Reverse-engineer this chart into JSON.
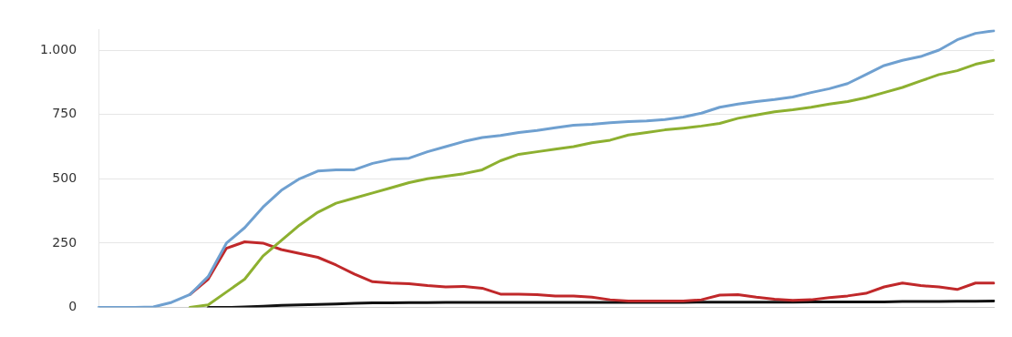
{
  "chart_data": {
    "type": "line",
    "categories": [
      null,
      null,
      null,
      null,
      null,
      null,
      null,
      null,
      null,
      null,
      null,
      null,
      null,
      null,
      null,
      null,
      null,
      null,
      null,
      null,
      null,
      null,
      null,
      null,
      null,
      null,
      null,
      null,
      null,
      null,
      null,
      null,
      null,
      null,
      null,
      null,
      null,
      null,
      null,
      null,
      null,
      null,
      null,
      null,
      null,
      null,
      null,
      null,
      null,
      null
    ],
    "series": [
      {
        "color": "#6fa0d0",
        "values": [
          0,
          0,
          0,
          2,
          20,
          50,
          120,
          250,
          310,
          390,
          455,
          500,
          530,
          535,
          535,
          560,
          575,
          580,
          605,
          625,
          645,
          660,
          668,
          680,
          688,
          698,
          708,
          712,
          718,
          722,
          725,
          730,
          740,
          755,
          778,
          790,
          800,
          808,
          818,
          835,
          850,
          870,
          905,
          940,
          960,
          975,
          1000,
          1040,
          1065,
          1075
        ]
      },
      {
        "color": "#8db030",
        "values": [
          null,
          null,
          null,
          null,
          null,
          0,
          10,
          60,
          110,
          200,
          260,
          320,
          370,
          405,
          425,
          445,
          465,
          485,
          500,
          510,
          520,
          535,
          570,
          595,
          605,
          615,
          625,
          640,
          650,
          670,
          680,
          690,
          697,
          705,
          715,
          735,
          748,
          760,
          768,
          778,
          790,
          800,
          815,
          835,
          855,
          880,
          905,
          920,
          945,
          960
        ]
      },
      {
        "color": "#c0282a",
        "values": [
          null,
          null,
          null,
          null,
          null,
          50,
          110,
          230,
          255,
          250,
          225,
          210,
          195,
          165,
          130,
          100,
          95,
          92,
          85,
          80,
          82,
          75,
          52,
          52,
          50,
          45,
          45,
          40,
          30,
          25,
          25,
          25,
          25,
          30,
          48,
          50,
          40,
          32,
          28,
          30,
          38,
          45,
          55,
          80,
          95,
          85,
          80,
          70,
          95,
          95
        ]
      },
      {
        "color": "#111111",
        "values": [
          null,
          null,
          null,
          null,
          null,
          null,
          0,
          0,
          2,
          5,
          8,
          10,
          12,
          14,
          16,
          18,
          18,
          19,
          19,
          20,
          20,
          20,
          20,
          20,
          20,
          20,
          20,
          20,
          20,
          20,
          20,
          20,
          20,
          21,
          21,
          21,
          21,
          21,
          21,
          22,
          22,
          22,
          22,
          22,
          23,
          23,
          23,
          24,
          24,
          25
        ]
      }
    ],
    "ylim": [
      0,
      1080
    ],
    "yticks": [
      0,
      250,
      500,
      750,
      {
        "value": 1000,
        "label": "1.000"
      }
    ],
    "grid": "y",
    "legend": false,
    "marker": "none",
    "line_style": "solid",
    "tick_labels": "y"
  }
}
